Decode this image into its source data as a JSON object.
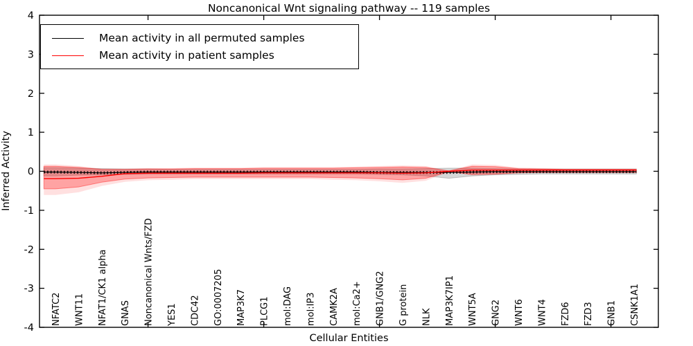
{
  "title": "Noncanonical Wnt signaling pathway -- 119 samples",
  "axes": {
    "x_label": "Cellular Entities",
    "y_label": "Inferred Activity"
  },
  "legend": {
    "position": "upper left",
    "items": [
      {
        "label": "Mean activity in all permuted samples",
        "color": "#000000"
      },
      {
        "label": "Mean activity in patient samples",
        "color": "#ff0000"
      }
    ]
  },
  "colors": {
    "permuted_line": "#000000",
    "patient_line": "#ff0000",
    "permuted_band": "#aaaaaa",
    "patient_band": "#ff0000",
    "axis": "#000000",
    "background": "#ffffff"
  },
  "chart_data": {
    "type": "line",
    "title": "Noncanonical Wnt signaling pathway -- 119 samples",
    "xlabel": "Cellular Entities",
    "ylabel": "Inferred Activity",
    "ylim": [
      -4,
      4
    ],
    "yticks": [
      -4,
      -3,
      -2,
      -1,
      0,
      1,
      2,
      3,
      4
    ],
    "xtick_positions": [
      5,
      10,
      15,
      20,
      25
    ],
    "grid": false,
    "legend_position": "upper left",
    "categories": [
      "NFATC2",
      "WNT11",
      "NFAT1/CK1 alpha",
      "GNAS",
      "Noncanonical Wnts/FZD",
      "YES1",
      "CDC42",
      "GO:0007205",
      "MAP3K7",
      "PLCG1",
      "mol:DAG",
      "mol:IP3",
      "CAMK2A",
      "mol:Ca2+",
      "GNB1/GNG2",
      "G protein",
      "NLK",
      "MAP3K7IP1",
      "WNT5A",
      "GNG2",
      "WNT6",
      "WNT4",
      "FZD6",
      "FZD3",
      "GNB1",
      "CSNK1A1"
    ],
    "series": [
      {
        "name": "Mean activity in all permuted samples",
        "color": "#000000",
        "style": "solid-with-tick-markers",
        "values": [
          -0.02,
          -0.03,
          -0.04,
          -0.03,
          -0.02,
          -0.02,
          -0.02,
          -0.02,
          -0.02,
          -0.02,
          -0.02,
          -0.02,
          -0.02,
          -0.02,
          -0.03,
          -0.03,
          -0.03,
          -0.03,
          -0.02,
          -0.01,
          -0.01,
          -0.01,
          -0.01,
          -0.01,
          -0.01,
          -0.01
        ]
      },
      {
        "name": "Mean activity in patient samples",
        "color": "#ff0000",
        "style": "solid",
        "values": [
          -0.19,
          -0.18,
          -0.13,
          -0.06,
          -0.05,
          -0.05,
          -0.05,
          -0.05,
          -0.05,
          -0.04,
          -0.04,
          -0.04,
          -0.04,
          -0.04,
          -0.04,
          -0.05,
          -0.04,
          0.0,
          0.03,
          0.03,
          0.03,
          0.03,
          0.03,
          0.03,
          0.03,
          0.03
        ]
      }
    ],
    "bands": [
      {
        "name": "permuted std band",
        "color": "#9a9a9a",
        "opacity": 0.4,
        "upper": [
          0.09,
          0.08,
          0.07,
          0.06,
          0.06,
          0.05,
          0.05,
          0.05,
          0.05,
          0.05,
          0.05,
          0.05,
          0.05,
          0.05,
          0.06,
          0.06,
          0.07,
          0.08,
          0.08,
          0.07,
          0.06,
          0.06,
          0.06,
          0.06,
          0.06,
          0.06
        ],
        "lower": [
          -0.12,
          -0.1,
          -0.09,
          -0.08,
          -0.07,
          -0.07,
          -0.07,
          -0.07,
          -0.07,
          -0.07,
          -0.07,
          -0.07,
          -0.07,
          -0.07,
          -0.08,
          -0.09,
          -0.12,
          -0.18,
          -0.12,
          -0.09,
          -0.08,
          -0.07,
          -0.07,
          -0.07,
          -0.07,
          -0.07
        ]
      },
      {
        "name": "patient std band",
        "color": "#ff0000",
        "opacity": 0.27,
        "upper": [
          0.13,
          0.1,
          0.05,
          0.05,
          0.06,
          0.06,
          0.07,
          0.07,
          0.07,
          0.08,
          0.08,
          0.08,
          0.08,
          0.09,
          0.1,
          0.11,
          0.1,
          0.01,
          0.13,
          0.12,
          0.07,
          0.06,
          0.05,
          0.05,
          0.05,
          0.05
        ],
        "lower": [
          -0.45,
          -0.4,
          -0.28,
          -0.2,
          -0.17,
          -0.16,
          -0.15,
          -0.15,
          -0.15,
          -0.15,
          -0.15,
          -0.15,
          -0.16,
          -0.17,
          -0.19,
          -0.22,
          -0.18,
          -0.01,
          -0.08,
          -0.07,
          -0.04,
          -0.03,
          -0.03,
          -0.03,
          -0.03,
          -0.03
        ]
      }
    ]
  }
}
